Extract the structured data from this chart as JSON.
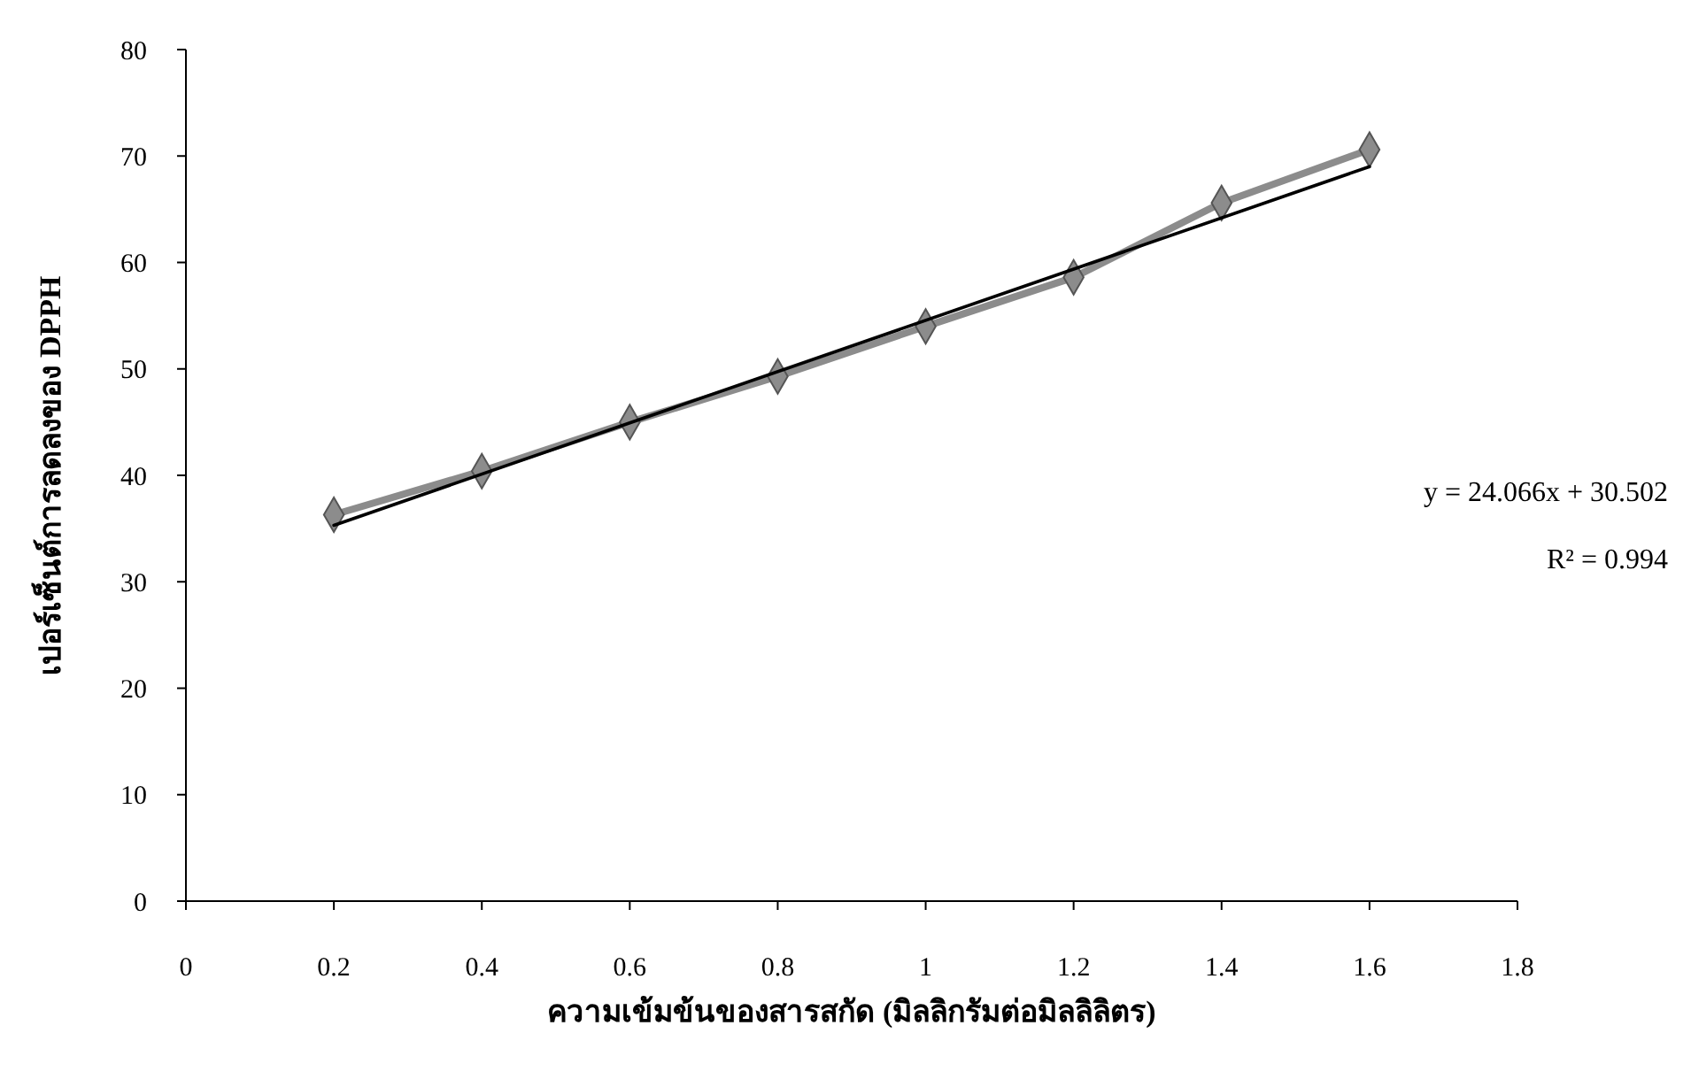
{
  "chart_data": {
    "type": "line",
    "xlabel": "ความเข้มข้นของสารสกัด (มิลลิกรัมต่อมิลลิลิตร)",
    "ylabel": "เปอร์เซ็นต์การลดลงของ DPPH",
    "x": [
      0.2,
      0.4,
      0.6,
      0.8,
      1,
      1.2,
      1.4,
      1.6
    ],
    "series": [
      {
        "color": "#8c8c8c",
        "marker": "diamond",
        "values": [
          36.3,
          40.4,
          45,
          49.3,
          54,
          58.6,
          65.6,
          70.6
        ]
      },
      {
        "type": "line",
        "color": "#000000",
        "marker": "none",
        "x": [
          0.2,
          1.6
        ],
        "values": [
          35.3,
          69
        ]
      }
    ],
    "xlim": [
      0,
      1.8
    ],
    "xticks": [
      0,
      0.2,
      0.4,
      0.6,
      0.8,
      1,
      1.2,
      1.4,
      1.6,
      1.8
    ],
    "ylim": [
      0,
      80
    ],
    "yticks": [
      0,
      10,
      20,
      30,
      40,
      50,
      60,
      70,
      80
    ],
    "grid": false,
    "annotations": [
      "y = 24.066x + 30.502",
      "R² = 0.994"
    ]
  }
}
